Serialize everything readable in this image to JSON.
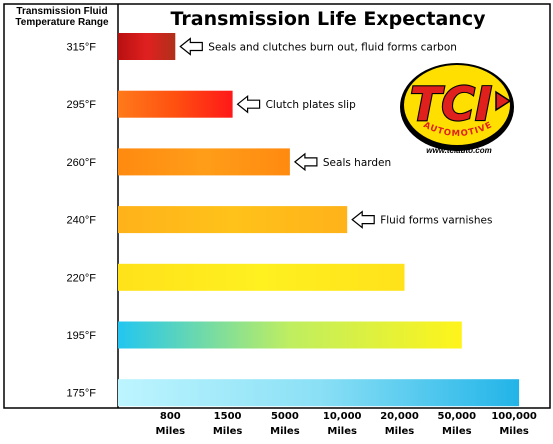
{
  "chart_data": {
    "type": "bar",
    "orientation": "horizontal",
    "title": "Transmission Life Expectancy",
    "ylabel": [
      "Transmission Fluid",
      "Temperature Range"
    ],
    "categories": [
      "315°F",
      "295°F",
      "260°F",
      "240°F",
      "220°F",
      "195°F",
      "175°F"
    ],
    "values_miles": [
      800,
      1500,
      5000,
      10000,
      20000,
      50000,
      100000
    ],
    "x_scale": "ordinal",
    "x_ticks": [
      {
        "value": "800",
        "unit": "Miles"
      },
      {
        "value": "1500",
        "unit": "Miles"
      },
      {
        "value": "5000",
        "unit": "Miles"
      },
      {
        "value": "10,000",
        "unit": "Miles"
      },
      {
        "value": "20,000",
        "unit": "Miles"
      },
      {
        "value": "50,000",
        "unit": "Miles"
      },
      {
        "value": "100,000",
        "unit": "Miles"
      }
    ],
    "annotations": [
      "Seals and clutches burn out, fluid forms carbon",
      "Clutch plates slip",
      "Seals harden",
      "Fluid forms varnishes"
    ],
    "bar_gradients": [
      [
        "#b81010",
        "#e02020",
        "#b0301a"
      ],
      [
        "#ff7a1a",
        "#ff5010",
        "#ff1818"
      ],
      [
        "#ff8a10",
        "#ff9d18",
        "#ff8a10"
      ],
      [
        "#ffb21a",
        "#ffc21a",
        "#ffb21a"
      ],
      [
        "#ffe21a",
        "#fff020",
        "#ffe21a"
      ],
      [
        "#22c6f0",
        "#bfee60",
        "#fff41a"
      ],
      [
        "#bdf5ff",
        "#8be0f5",
        "#22b4e8"
      ]
    ],
    "grid": false
  },
  "logo": {
    "text": "TCI",
    "subtext": "AUTOMOTIVE",
    "url": "www.tciauto.com",
    "colors": {
      "yellow": "#ffdf00",
      "red": "#e0201c",
      "black": "#000000"
    }
  }
}
